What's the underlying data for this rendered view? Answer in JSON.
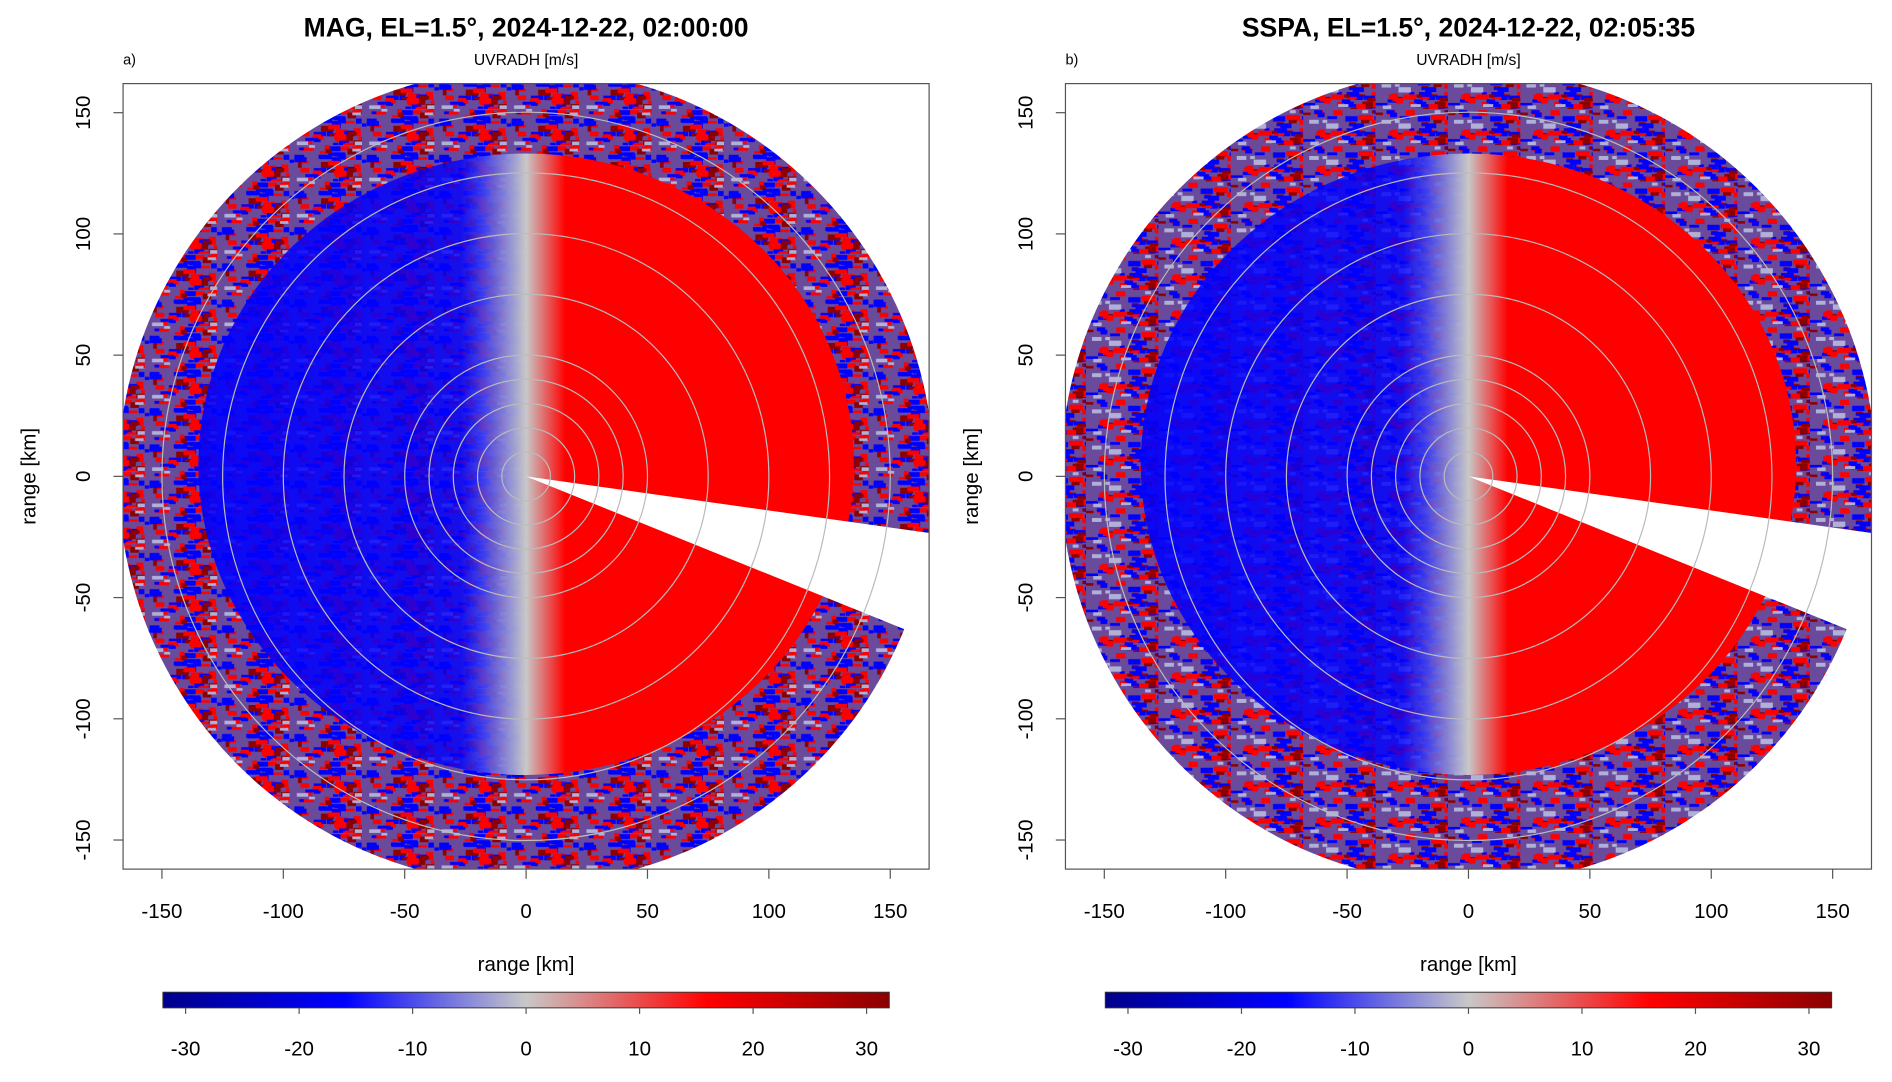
{
  "chart_data": [
    {
      "type": "radar",
      "title": "MAG, EL=1.5°, 2024-12-22, 02:00:00",
      "panel_label": "a)",
      "subtitle": "UVRADH [m/s]",
      "xlabel": "range [km]",
      "ylabel": "range [km]",
      "xlim": [
        -166,
        166
      ],
      "ylim": [
        -162,
        162
      ],
      "xticks": [
        -150,
        -100,
        -50,
        0,
        50,
        100,
        150
      ],
      "yticks": [
        -150,
        -100,
        -50,
        0,
        50,
        100,
        150
      ],
      "colorbar": {
        "lim": [
          -32,
          32
        ],
        "ticks": [
          -30,
          -20,
          -10,
          0,
          10,
          20,
          30
        ],
        "colors": [
          "#00008b",
          "#0000ff",
          "#c8c8c8",
          "#ff0000",
          "#8b0000"
        ]
      }
    },
    {
      "type": "radar",
      "title": "SSPA, EL=1.5°, 2024-12-22, 02:05:35",
      "panel_label": "b)",
      "subtitle": "UVRADH [m/s]",
      "xlabel": "range [km]",
      "ylabel": "range [km]",
      "xlim": [
        -166,
        166
      ],
      "ylim": [
        -162,
        162
      ],
      "xticks": [
        -150,
        -100,
        -50,
        0,
        50,
        100,
        150
      ],
      "yticks": [
        -150,
        -100,
        -50,
        0,
        50,
        100,
        150
      ],
      "colorbar": {
        "lim": [
          -32,
          32
        ],
        "ticks": [
          -30,
          -20,
          -10,
          0,
          10,
          20,
          30
        ],
        "colors": [
          "#00008b",
          "#0000ff",
          "#c8c8c8",
          "#ff0000",
          "#8b0000"
        ]
      }
    }
  ]
}
